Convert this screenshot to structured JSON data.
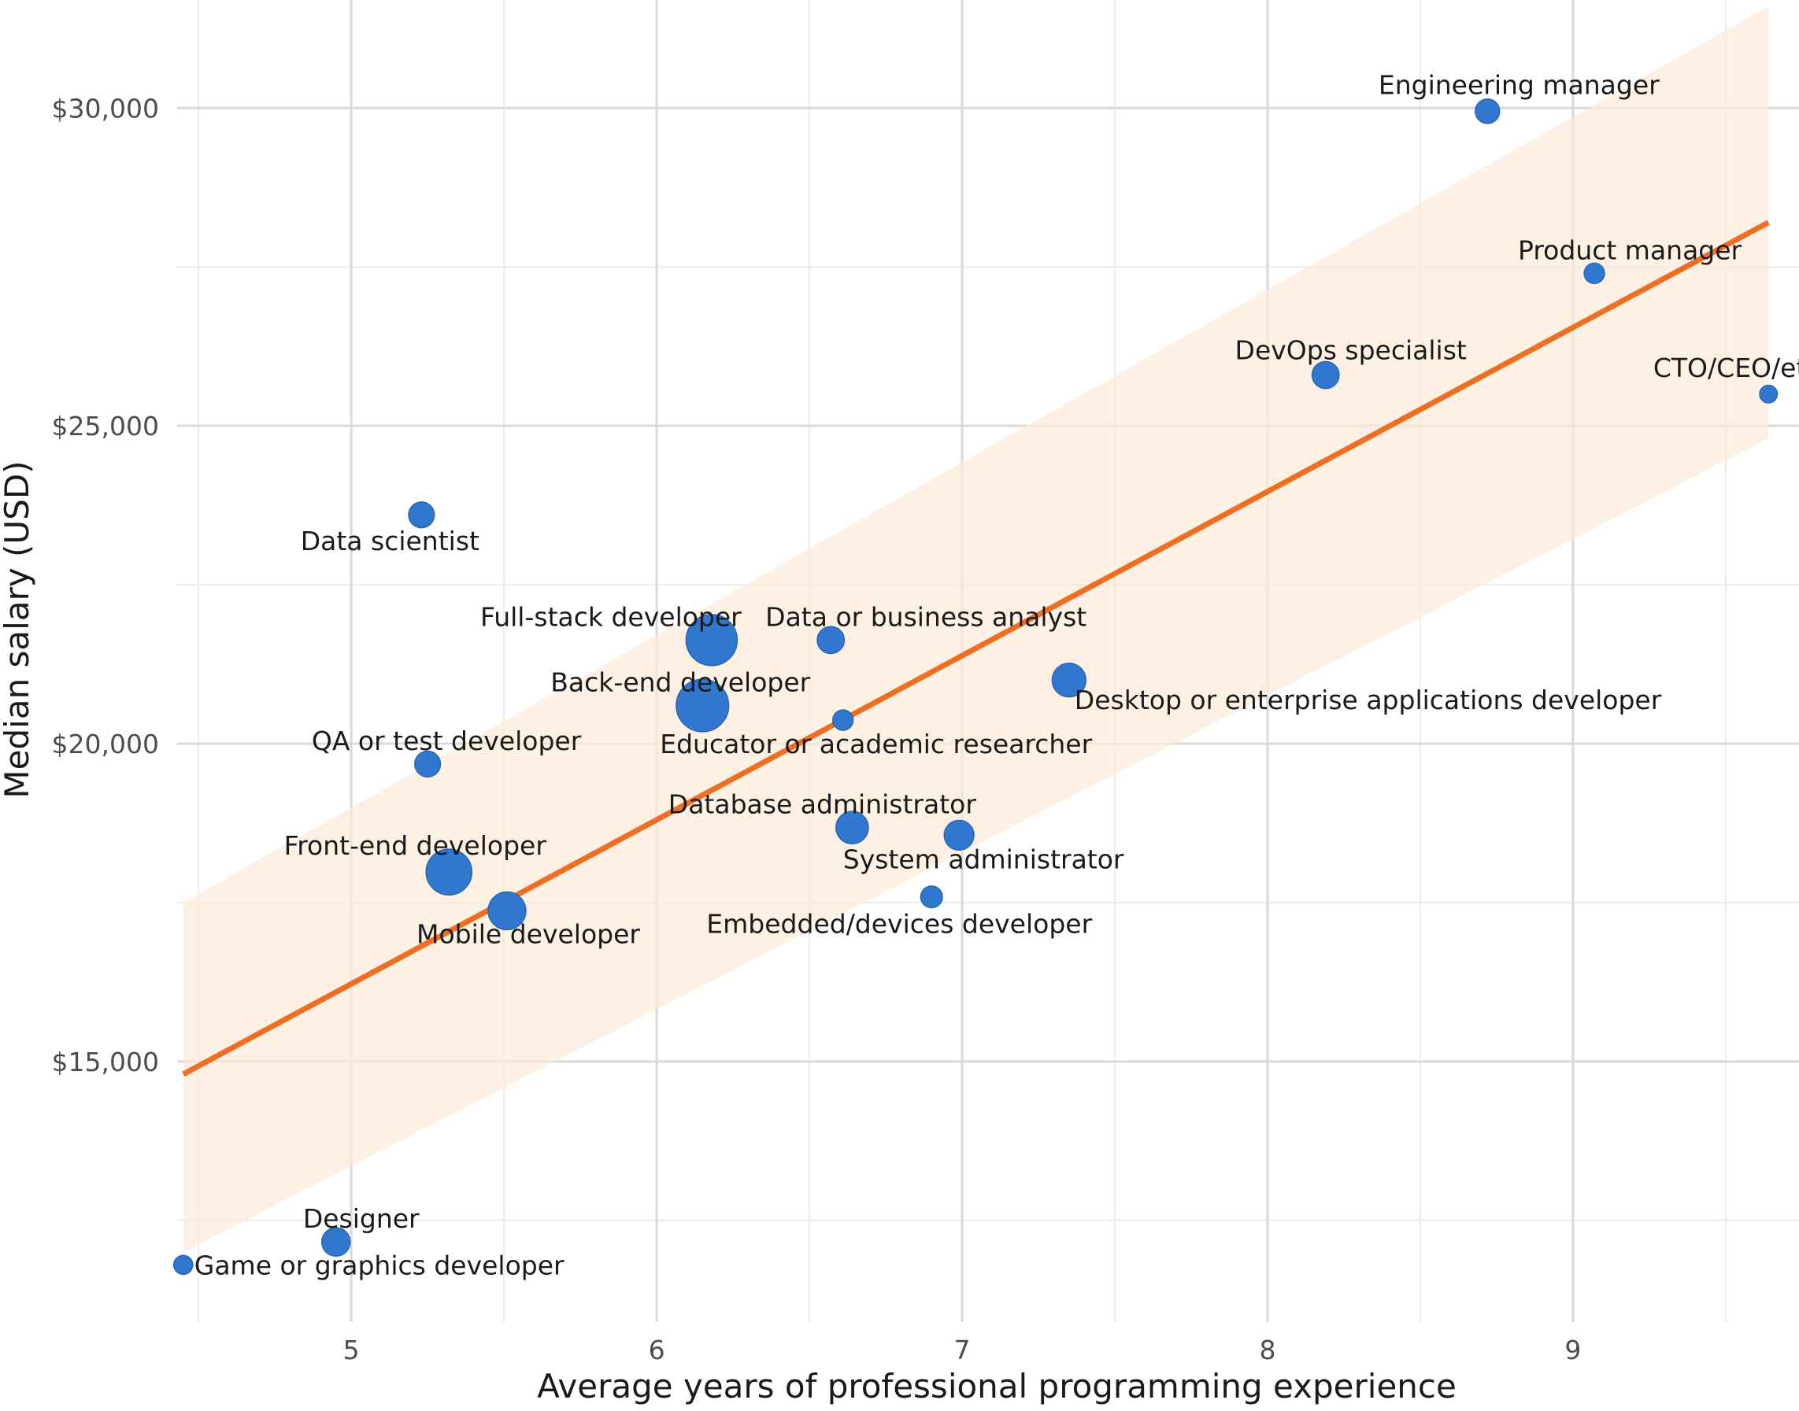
{
  "chart_data": {
    "type": "scatter",
    "title": "",
    "xlabel": "Average years of professional programming experience",
    "ylabel": "Median salary (USD)",
    "xlim": [
      4.43,
      9.74
    ],
    "ylim": [
      10900,
      31700
    ],
    "x_ticks": [
      5,
      6,
      7,
      8,
      9
    ],
    "x_tick_labels": [
      "5",
      "6",
      "7",
      "8",
      "9"
    ],
    "y_ticks": [
      15000,
      20000,
      25000,
      30000
    ],
    "y_tick_labels": [
      "$15,000",
      "$20,000",
      "$25,000",
      "$30,000"
    ],
    "grid": true,
    "legend": "none",
    "point_color": "#3077cf",
    "trend_color": "#ec6f24",
    "band_color": "#fdebd9",
    "points": [
      {
        "label": "Engineering manager",
        "x": 8.72,
        "y": 29950,
        "size": 1.0
      },
      {
        "label": "Product manager",
        "x": 9.07,
        "y": 27400,
        "size": 0.7
      },
      {
        "label": "DevOps specialist",
        "x": 8.19,
        "y": 25800,
        "size": 1.2
      },
      {
        "label": "CTO/CEO/etc",
        "x": 9.64,
        "y": 25500,
        "size": 0.5
      },
      {
        "label": "Data scientist",
        "x": 5.23,
        "y": 23600,
        "size": 1.1
      },
      {
        "label": "Full-stack developer",
        "x": 6.18,
        "y": 21630,
        "size": 3.0
      },
      {
        "label": "Data or business analyst",
        "x": 6.57,
        "y": 21630,
        "size": 1.2
      },
      {
        "label": "Back-end developer",
        "x": 6.15,
        "y": 20600,
        "size": 3.1
      },
      {
        "label": "Desktop or enterprise applications developer",
        "x": 7.35,
        "y": 21000,
        "size": 1.7
      },
      {
        "label": "Educator or academic researcher",
        "x": 6.61,
        "y": 20370,
        "size": 0.7
      },
      {
        "label": "QA or test developer",
        "x": 5.25,
        "y": 19680,
        "size": 1.1
      },
      {
        "label": "Database administrator",
        "x": 6.64,
        "y": 18680,
        "size": 1.6
      },
      {
        "label": "System administrator",
        "x": 6.99,
        "y": 18560,
        "size": 1.4
      },
      {
        "label": "Front-end developer",
        "x": 5.32,
        "y": 17980,
        "size": 2.6
      },
      {
        "label": "Mobile developer",
        "x": 5.51,
        "y": 17370,
        "size": 2.0
      },
      {
        "label": "Embedded/devices developer",
        "x": 6.9,
        "y": 17590,
        "size": 0.8
      },
      {
        "label": "Designer",
        "x": 4.95,
        "y": 12160,
        "size": 1.3
      },
      {
        "label": "Game or graphics developer",
        "x": 4.45,
        "y": 11800,
        "size": 0.6
      }
    ],
    "trend": {
      "x": [
        4.45,
        9.64
      ],
      "y": [
        14800,
        28200
      ],
      "band_lower": [
        12000,
        24800
      ],
      "band_upper": [
        17500,
        31600
      ]
    }
  }
}
